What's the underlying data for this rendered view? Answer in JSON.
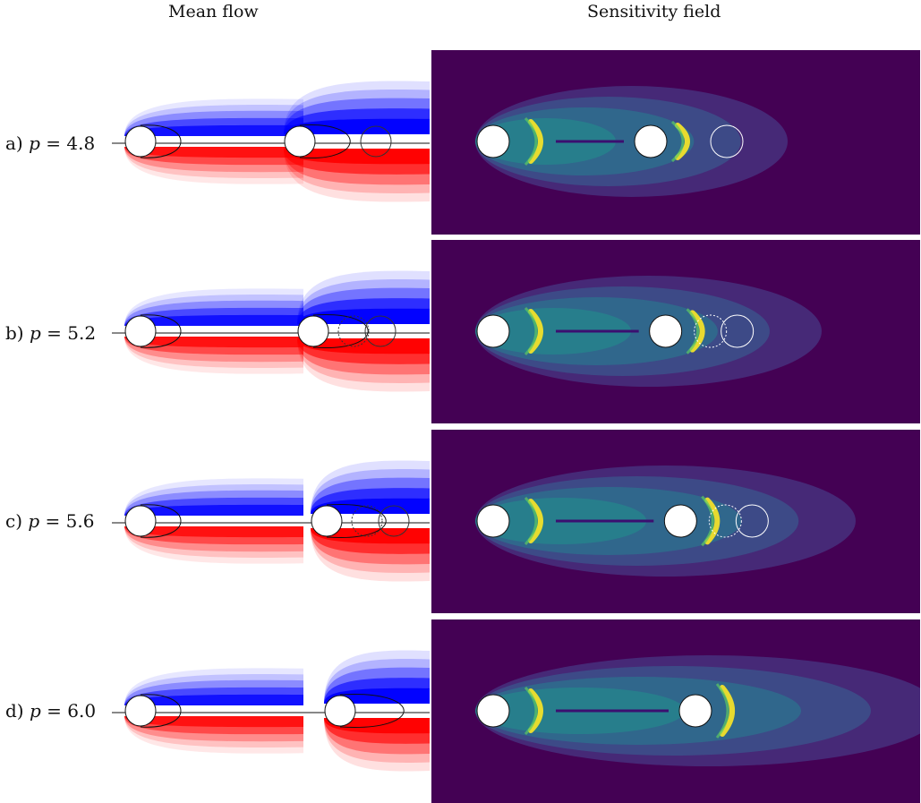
{
  "columns": {
    "mean_flow_title": "Mean flow",
    "sensitivity_title": "Sensitivity field"
  },
  "rows": [
    {
      "letter": "a)",
      "p_symbol": "p",
      "p_value": "= 4.8",
      "p": 4.8,
      "ghost": [
        "solid"
      ],
      "wake_extent": 0.55
    },
    {
      "letter": "b)",
      "p_symbol": "p",
      "p_value": "= 5.2",
      "p": 5.2,
      "ghost": [
        "dotted",
        "solid"
      ],
      "wake_extent": 0.65
    },
    {
      "letter": "c)",
      "p_symbol": "p",
      "p_value": "= 5.6",
      "p": 5.6,
      "ghost": [
        "dotted",
        "solid"
      ],
      "wake_extent": 0.75
    },
    {
      "letter": "d)",
      "p_symbol": "p",
      "p_value": "= 6.0",
      "p": 6.0,
      "ghost": [],
      "wake_extent": 1.0
    }
  ],
  "colors": {
    "positive": "#ff0000",
    "negative": "#0000ff",
    "sensitivity_background": "#440154",
    "sensitivity_mid": "#21918c",
    "sensitivity_peak": "#fde725"
  }
}
